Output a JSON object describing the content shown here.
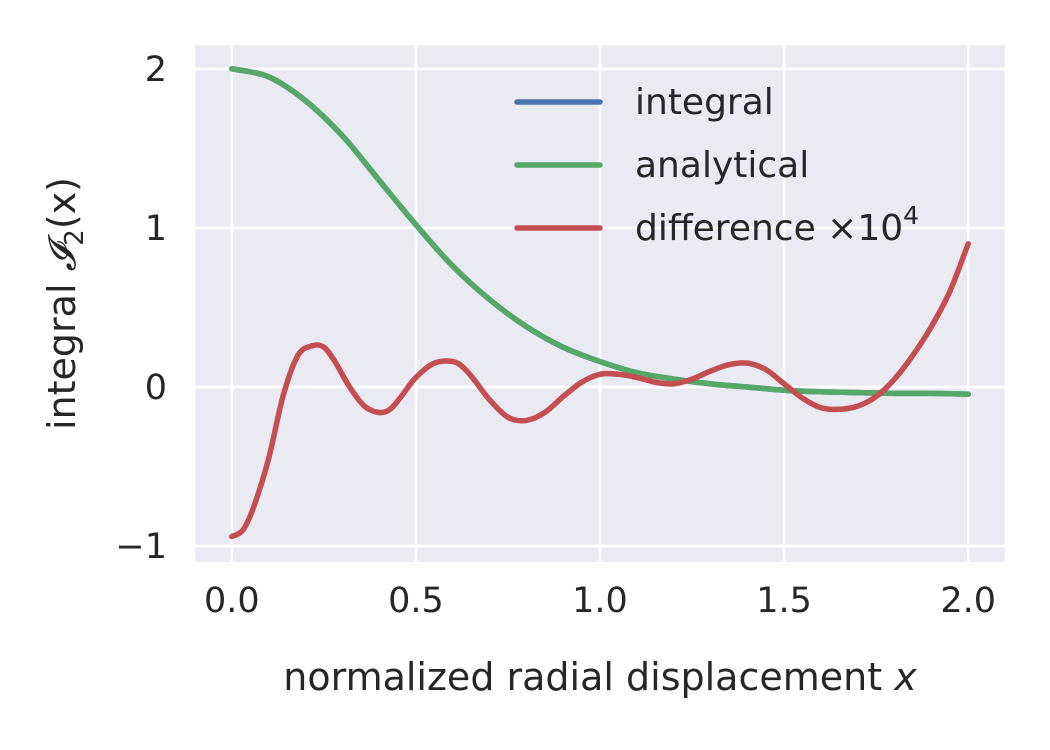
{
  "chart_data": {
    "type": "line",
    "xlabel": "normalized radial displacement",
    "xlabel_var": "x",
    "ylabel": "integral",
    "ylabel_symbol": "𝓘",
    "ylabel_sub": "2",
    "ylabel_arg": "(x)",
    "xlim": [
      -0.1,
      2.1
    ],
    "ylim": [
      -1.1,
      2.15
    ],
    "xticks": [
      0.0,
      0.5,
      1.0,
      1.5,
      2.0
    ],
    "xtick_labels": [
      "0.0",
      "0.5",
      "1.0",
      "1.5",
      "2.0"
    ],
    "yticks": [
      -1,
      0,
      1,
      2
    ],
    "ytick_labels": [
      "−1",
      "0",
      "1",
      "2"
    ],
    "grid": true,
    "legend_position": "top-right",
    "series": [
      {
        "name": "integral",
        "color": "#4c72b0",
        "x": [
          0.0,
          0.1,
          0.2,
          0.3,
          0.4,
          0.5,
          0.6,
          0.7,
          0.8,
          0.9,
          1.0,
          1.1,
          1.2,
          1.3,
          1.4,
          1.5,
          1.6,
          1.7,
          1.8,
          1.9,
          2.0
        ],
        "y": [
          2.0,
          1.95,
          1.8,
          1.58,
          1.3,
          1.02,
          0.76,
          0.55,
          0.38,
          0.25,
          0.16,
          0.09,
          0.05,
          0.02,
          0.0,
          -0.02,
          -0.03,
          -0.035,
          -0.04,
          -0.04,
          -0.045
        ]
      },
      {
        "name": "analytical",
        "color": "#55a868",
        "x": [
          0.0,
          0.1,
          0.2,
          0.3,
          0.4,
          0.5,
          0.6,
          0.7,
          0.8,
          0.9,
          1.0,
          1.1,
          1.2,
          1.3,
          1.4,
          1.5,
          1.6,
          1.7,
          1.8,
          1.9,
          2.0
        ],
        "y": [
          2.0,
          1.95,
          1.8,
          1.58,
          1.3,
          1.02,
          0.76,
          0.55,
          0.38,
          0.25,
          0.16,
          0.09,
          0.05,
          0.02,
          0.0,
          -0.02,
          -0.03,
          -0.035,
          -0.04,
          -0.04,
          -0.045
        ]
      },
      {
        "name": "difference ×10",
        "name_sup": "4",
        "color": "#c44e52",
        "x": [
          0.0,
          0.03,
          0.06,
          0.1,
          0.14,
          0.18,
          0.22,
          0.25,
          0.28,
          0.32,
          0.36,
          0.4,
          0.43,
          0.46,
          0.5,
          0.55,
          0.6,
          0.63,
          0.66,
          0.7,
          0.75,
          0.8,
          0.85,
          0.9,
          0.95,
          1.0,
          1.05,
          1.1,
          1.15,
          1.2,
          1.25,
          1.3,
          1.35,
          1.4,
          1.45,
          1.5,
          1.55,
          1.6,
          1.65,
          1.7,
          1.75,
          1.8,
          1.85,
          1.9,
          1.95,
          2.0
        ],
        "y": [
          -0.94,
          -0.9,
          -0.75,
          -0.45,
          -0.05,
          0.2,
          0.26,
          0.25,
          0.16,
          0.0,
          -0.12,
          -0.16,
          -0.14,
          -0.06,
          0.06,
          0.15,
          0.16,
          0.12,
          0.04,
          -0.08,
          -0.19,
          -0.21,
          -0.16,
          -0.06,
          0.03,
          0.08,
          0.08,
          0.06,
          0.03,
          0.02,
          0.05,
          0.1,
          0.14,
          0.15,
          0.11,
          0.02,
          -0.07,
          -0.13,
          -0.14,
          -0.12,
          -0.06,
          0.05,
          0.2,
          0.38,
          0.6,
          0.9
        ]
      }
    ]
  }
}
